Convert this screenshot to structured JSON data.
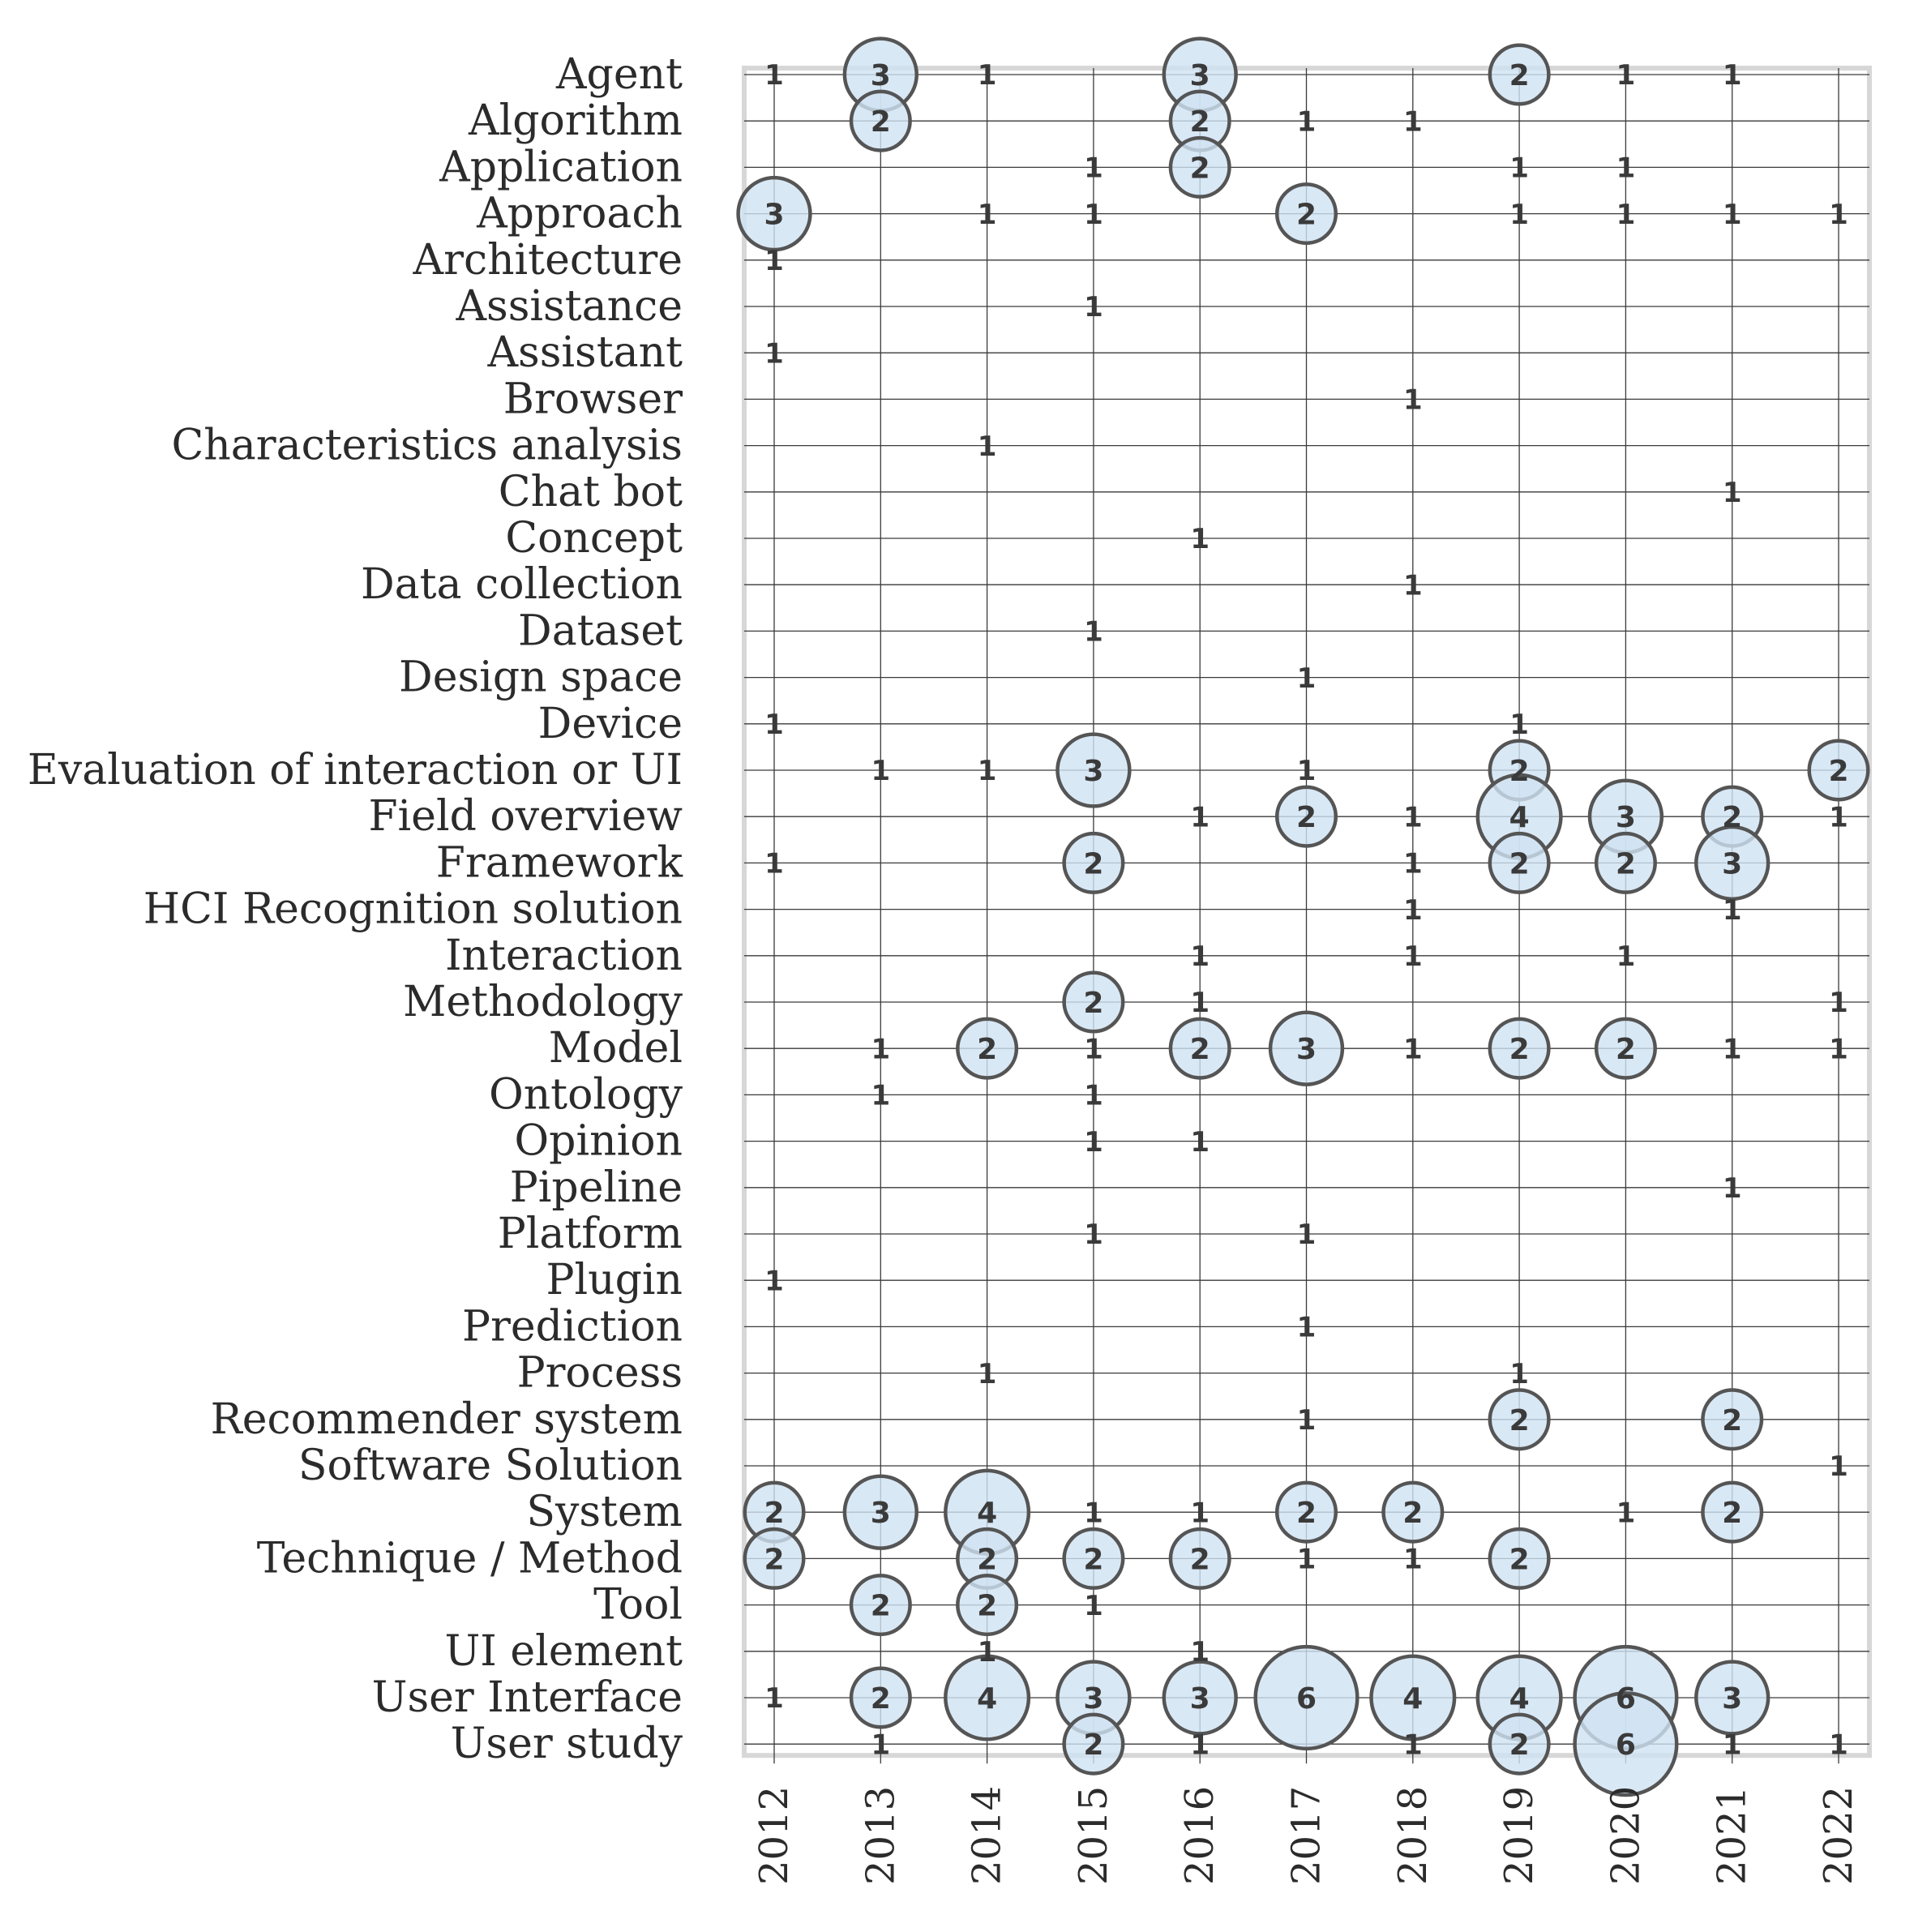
{
  "chart_data": {
    "type": "scatter",
    "years": [
      2012,
      2013,
      2014,
      2015,
      2016,
      2017,
      2018,
      2019,
      2020,
      2021,
      2022
    ],
    "categories": [
      "Agent",
      "Algorithm",
      "Application",
      "Approach",
      "Architecture",
      "Assistance",
      "Assistant",
      "Browser",
      "Characteristics analysis",
      "Chat bot",
      "Concept",
      "Data collection",
      "Dataset",
      "Design space",
      "Device",
      "Evaluation of interaction or UI",
      "Field overview",
      "Framework",
      "HCI Recognition solution",
      "Interaction",
      "Methodology",
      "Model",
      "Ontology",
      "Opinion",
      "Pipeline",
      "Platform",
      "Plugin",
      "Prediction",
      "Process",
      "Recommender system",
      "Software Solution",
      "System",
      "Technique / Method",
      "Tool",
      "UI element",
      "User Interface",
      "User study"
    ],
    "points": [
      {
        "category": "Agent",
        "year": 2012,
        "count": 1
      },
      {
        "category": "Agent",
        "year": 2013,
        "count": 3
      },
      {
        "category": "Agent",
        "year": 2014,
        "count": 1
      },
      {
        "category": "Agent",
        "year": 2016,
        "count": 3
      },
      {
        "category": "Agent",
        "year": 2019,
        "count": 2
      },
      {
        "category": "Agent",
        "year": 2020,
        "count": 1
      },
      {
        "category": "Agent",
        "year": 2021,
        "count": 1
      },
      {
        "category": "Algorithm",
        "year": 2013,
        "count": 2
      },
      {
        "category": "Algorithm",
        "year": 2016,
        "count": 2
      },
      {
        "category": "Algorithm",
        "year": 2017,
        "count": 1
      },
      {
        "category": "Algorithm",
        "year": 2018,
        "count": 1
      },
      {
        "category": "Application",
        "year": 2015,
        "count": 1
      },
      {
        "category": "Application",
        "year": 2016,
        "count": 2
      },
      {
        "category": "Application",
        "year": 2019,
        "count": 1
      },
      {
        "category": "Application",
        "year": 2020,
        "count": 1
      },
      {
        "category": "Approach",
        "year": 2012,
        "count": 3
      },
      {
        "category": "Approach",
        "year": 2014,
        "count": 1
      },
      {
        "category": "Approach",
        "year": 2015,
        "count": 1
      },
      {
        "category": "Approach",
        "year": 2017,
        "count": 2
      },
      {
        "category": "Approach",
        "year": 2019,
        "count": 1
      },
      {
        "category": "Approach",
        "year": 2020,
        "count": 1
      },
      {
        "category": "Approach",
        "year": 2021,
        "count": 1
      },
      {
        "category": "Approach",
        "year": 2022,
        "count": 1
      },
      {
        "category": "Architecture",
        "year": 2012,
        "count": 1
      },
      {
        "category": "Assistance",
        "year": 2015,
        "count": 1
      },
      {
        "category": "Assistant",
        "year": 2012,
        "count": 1
      },
      {
        "category": "Browser",
        "year": 2018,
        "count": 1
      },
      {
        "category": "Characteristics analysis",
        "year": 2014,
        "count": 1
      },
      {
        "category": "Chat bot",
        "year": 2021,
        "count": 1
      },
      {
        "category": "Concept",
        "year": 2016,
        "count": 1
      },
      {
        "category": "Data collection",
        "year": 2018,
        "count": 1
      },
      {
        "category": "Dataset",
        "year": 2015,
        "count": 1
      },
      {
        "category": "Design space",
        "year": 2017,
        "count": 1
      },
      {
        "category": "Device",
        "year": 2012,
        "count": 1
      },
      {
        "category": "Device",
        "year": 2019,
        "count": 1
      },
      {
        "category": "Evaluation of interaction or UI",
        "year": 2013,
        "count": 1
      },
      {
        "category": "Evaluation of interaction or UI",
        "year": 2014,
        "count": 1
      },
      {
        "category": "Evaluation of interaction or UI",
        "year": 2015,
        "count": 3
      },
      {
        "category": "Evaluation of interaction or UI",
        "year": 2017,
        "count": 1
      },
      {
        "category": "Evaluation of interaction or UI",
        "year": 2019,
        "count": 2
      },
      {
        "category": "Evaluation of interaction or UI",
        "year": 2022,
        "count": 2
      },
      {
        "category": "Field overview",
        "year": 2016,
        "count": 1
      },
      {
        "category": "Field overview",
        "year": 2017,
        "count": 2
      },
      {
        "category": "Field overview",
        "year": 2018,
        "count": 1
      },
      {
        "category": "Field overview",
        "year": 2019,
        "count": 4
      },
      {
        "category": "Field overview",
        "year": 2020,
        "count": 3
      },
      {
        "category": "Field overview",
        "year": 2021,
        "count": 2
      },
      {
        "category": "Field overview",
        "year": 2022,
        "count": 1
      },
      {
        "category": "Framework",
        "year": 2012,
        "count": 1
      },
      {
        "category": "Framework",
        "year": 2015,
        "count": 2
      },
      {
        "category": "Framework",
        "year": 2018,
        "count": 1
      },
      {
        "category": "Framework",
        "year": 2019,
        "count": 2
      },
      {
        "category": "Framework",
        "year": 2020,
        "count": 2
      },
      {
        "category": "Framework",
        "year": 2021,
        "count": 3
      },
      {
        "category": "HCI Recognition solution",
        "year": 2018,
        "count": 1
      },
      {
        "category": "HCI Recognition solution",
        "year": 2021,
        "count": 1
      },
      {
        "category": "Interaction",
        "year": 2016,
        "count": 1
      },
      {
        "category": "Interaction",
        "year": 2018,
        "count": 1
      },
      {
        "category": "Interaction",
        "year": 2020,
        "count": 1
      },
      {
        "category": "Methodology",
        "year": 2015,
        "count": 2
      },
      {
        "category": "Methodology",
        "year": 2016,
        "count": 1
      },
      {
        "category": "Methodology",
        "year": 2022,
        "count": 1
      },
      {
        "category": "Model",
        "year": 2013,
        "count": 1
      },
      {
        "category": "Model",
        "year": 2014,
        "count": 2
      },
      {
        "category": "Model",
        "year": 2015,
        "count": 1
      },
      {
        "category": "Model",
        "year": 2016,
        "count": 2
      },
      {
        "category": "Model",
        "year": 2017,
        "count": 3
      },
      {
        "category": "Model",
        "year": 2018,
        "count": 1
      },
      {
        "category": "Model",
        "year": 2019,
        "count": 2
      },
      {
        "category": "Model",
        "year": 2020,
        "count": 2
      },
      {
        "category": "Model",
        "year": 2021,
        "count": 1
      },
      {
        "category": "Model",
        "year": 2022,
        "count": 1
      },
      {
        "category": "Ontology",
        "year": 2013,
        "count": 1
      },
      {
        "category": "Ontology",
        "year": 2015,
        "count": 1
      },
      {
        "category": "Opinion",
        "year": 2015,
        "count": 1
      },
      {
        "category": "Opinion",
        "year": 2016,
        "count": 1
      },
      {
        "category": "Pipeline",
        "year": 2021,
        "count": 1
      },
      {
        "category": "Platform",
        "year": 2015,
        "count": 1
      },
      {
        "category": "Platform",
        "year": 2017,
        "count": 1
      },
      {
        "category": "Plugin",
        "year": 2012,
        "count": 1
      },
      {
        "category": "Prediction",
        "year": 2017,
        "count": 1
      },
      {
        "category": "Process",
        "year": 2014,
        "count": 1
      },
      {
        "category": "Process",
        "year": 2019,
        "count": 1
      },
      {
        "category": "Recommender system",
        "year": 2017,
        "count": 1
      },
      {
        "category": "Recommender system",
        "year": 2019,
        "count": 2
      },
      {
        "category": "Recommender system",
        "year": 2021,
        "count": 2
      },
      {
        "category": "Software Solution",
        "year": 2022,
        "count": 1
      },
      {
        "category": "System",
        "year": 2012,
        "count": 2
      },
      {
        "category": "System",
        "year": 2013,
        "count": 3
      },
      {
        "category": "System",
        "year": 2014,
        "count": 4
      },
      {
        "category": "System",
        "year": 2015,
        "count": 1
      },
      {
        "category": "System",
        "year": 2016,
        "count": 1
      },
      {
        "category": "System",
        "year": 2017,
        "count": 2
      },
      {
        "category": "System",
        "year": 2018,
        "count": 2
      },
      {
        "category": "System",
        "year": 2020,
        "count": 1
      },
      {
        "category": "System",
        "year": 2021,
        "count": 2
      },
      {
        "category": "Technique / Method",
        "year": 2012,
        "count": 2
      },
      {
        "category": "Technique / Method",
        "year": 2014,
        "count": 2
      },
      {
        "category": "Technique / Method",
        "year": 2015,
        "count": 2
      },
      {
        "category": "Technique / Method",
        "year": 2016,
        "count": 2
      },
      {
        "category": "Technique / Method",
        "year": 2017,
        "count": 1
      },
      {
        "category": "Technique / Method",
        "year": 2018,
        "count": 1
      },
      {
        "category": "Technique / Method",
        "year": 2019,
        "count": 2
      },
      {
        "category": "Tool",
        "year": 2013,
        "count": 2
      },
      {
        "category": "Tool",
        "year": 2014,
        "count": 2
      },
      {
        "category": "Tool",
        "year": 2015,
        "count": 1
      },
      {
        "category": "UI element",
        "year": 2014,
        "count": 1
      },
      {
        "category": "UI element",
        "year": 2016,
        "count": 1
      },
      {
        "category": "User Interface",
        "year": 2012,
        "count": 1
      },
      {
        "category": "User Interface",
        "year": 2013,
        "count": 2
      },
      {
        "category": "User Interface",
        "year": 2014,
        "count": 4
      },
      {
        "category": "User Interface",
        "year": 2015,
        "count": 3
      },
      {
        "category": "User Interface",
        "year": 2016,
        "count": 3
      },
      {
        "category": "User Interface",
        "year": 2017,
        "count": 6
      },
      {
        "category": "User Interface",
        "year": 2018,
        "count": 4
      },
      {
        "category": "User Interface",
        "year": 2019,
        "count": 4
      },
      {
        "category": "User Interface",
        "year": 2020,
        "count": 6
      },
      {
        "category": "User Interface",
        "year": 2021,
        "count": 3
      },
      {
        "category": "User study",
        "year": 2013,
        "count": 1
      },
      {
        "category": "User study",
        "year": 2015,
        "count": 2
      },
      {
        "category": "User study",
        "year": 2016,
        "count": 1
      },
      {
        "category": "User study",
        "year": 2018,
        "count": 1
      },
      {
        "category": "User study",
        "year": 2019,
        "count": 2
      },
      {
        "category": "User study",
        "year": 2020,
        "count": 6
      },
      {
        "category": "User study",
        "year": 2021,
        "count": 1
      },
      {
        "category": "User study",
        "year": 2022,
        "count": 1
      }
    ],
    "size_encoding": "bubble area proportional to count; count printed in bubble",
    "grid": true,
    "legend": "none"
  }
}
